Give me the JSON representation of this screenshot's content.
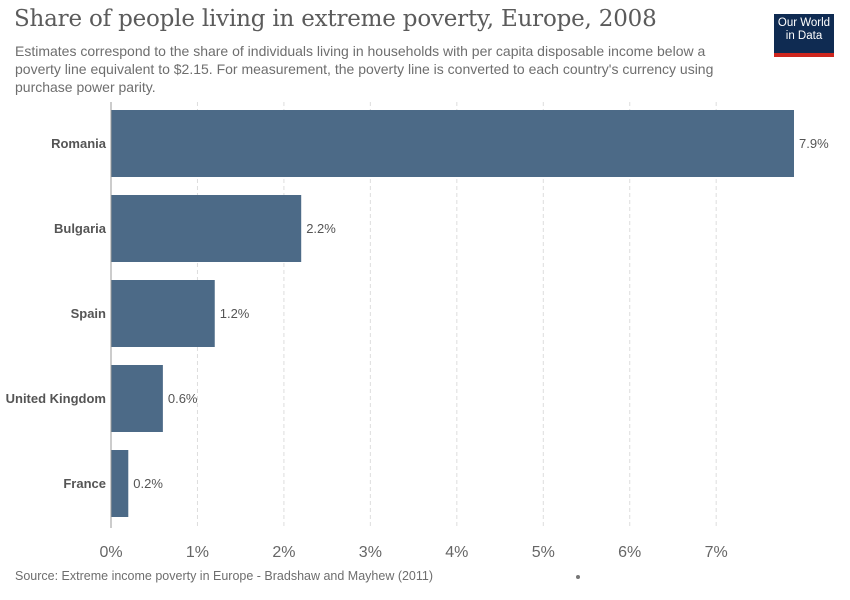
{
  "header": {
    "title": "Share of people living in extreme poverty, Europe, 2008",
    "subtitle": "Estimates correspond to the share of individuals living in households with per capita disposable income below a poverty line equivalent to $2.15. For measurement, the poverty line is converted to each country's currency using purchase power parity.",
    "logo_line1": "Our World",
    "logo_line2": "in Data"
  },
  "footer": {
    "source": "Source: Extreme income poverty in Europe - Bradshaw and Mayhew (2011)"
  },
  "colors": {
    "bar": "#4c6a87",
    "grid": "#dddddd",
    "logo_bg": "#0f2b52",
    "logo_accent": "#ce261e"
  },
  "chart_data": {
    "type": "bar",
    "orientation": "horizontal",
    "title": "Share of people living in extreme poverty, Europe, 2008",
    "categories": [
      "Romania",
      "Bulgaria",
      "Spain",
      "United Kingdom",
      "France"
    ],
    "values": [
      7.9,
      2.2,
      1.2,
      0.6,
      0.2
    ],
    "value_labels": [
      "7.9%",
      "2.2%",
      "1.2%",
      "0.6%",
      "0.2%"
    ],
    "xlim": [
      0,
      7.9
    ],
    "xticks": [
      0,
      1,
      2,
      3,
      4,
      5,
      6,
      7
    ],
    "xtick_labels": [
      "0%",
      "1%",
      "2%",
      "3%",
      "4%",
      "5%",
      "6%",
      "7%"
    ],
    "grid": true,
    "legend": "none"
  }
}
